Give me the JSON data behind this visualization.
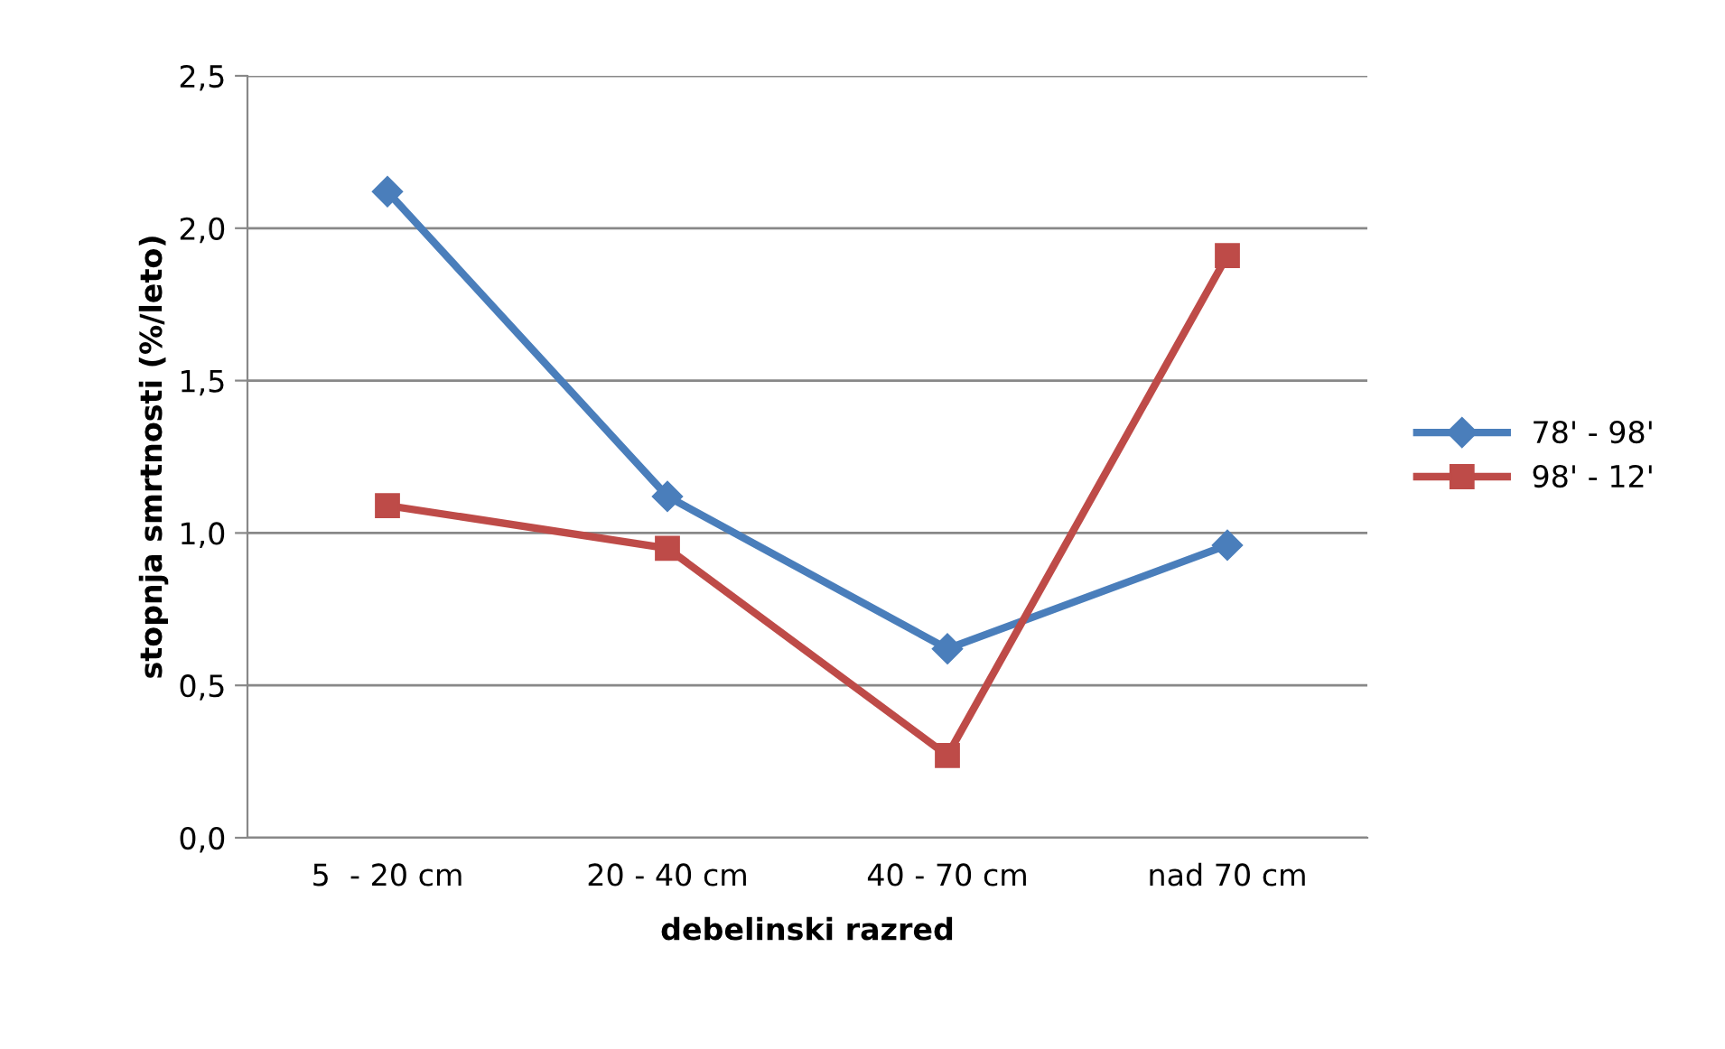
{
  "chart_data": {
    "type": "line",
    "xlabel": "debelinski razred",
    "ylabel": "stopnja smrtnosti (%/leto)",
    "categories": [
      "5  - 20 cm",
      "20 - 40 cm",
      "40 - 70 cm",
      "nad 70 cm"
    ],
    "series": [
      {
        "name": "78' - 98'",
        "color": "#4a7ebb",
        "marker": "diamond",
        "values": [
          2.12,
          1.12,
          0.62,
          0.96
        ]
      },
      {
        "name": "98' - 12'",
        "color": "#be4b48",
        "marker": "square",
        "values": [
          1.09,
          0.95,
          0.27,
          1.91
        ]
      }
    ],
    "ylim": [
      0,
      2.5
    ],
    "yticks": [
      {
        "value": 0,
        "label": "0,0"
      },
      {
        "value": 0.5,
        "label": "0,5"
      },
      {
        "value": 1,
        "label": "1,0"
      },
      {
        "value": 1.5,
        "label": "1,5"
      },
      {
        "value": 2,
        "label": "2,0"
      },
      {
        "value": 2.5,
        "label": "2,5"
      }
    ],
    "grid": "y",
    "legend": "right",
    "line_style": "solid"
  }
}
